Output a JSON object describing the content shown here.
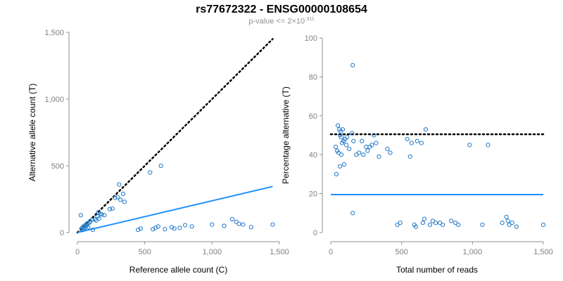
{
  "header": {
    "title": "rs77672322 - ENSG00000108654",
    "subtitle_prefix": "p-value <= 2×10",
    "subtitle_exponent": "-311"
  },
  "colors": {
    "points": "#1f78c8",
    "fit_line": "#1e90ff",
    "reference_line": "#000000",
    "axis": "#909090"
  },
  "chart_data": [
    {
      "type": "scatter",
      "xlabel": "Reference allele count (C)",
      "ylabel": "Alternative allele count (T)",
      "xlim": [
        0,
        1500
      ],
      "ylim": [
        0,
        1500
      ],
      "x_ticks": [
        0,
        500,
        1000,
        1500
      ],
      "x_tick_labels": [
        "0",
        "500",
        "1,000",
        "1,500"
      ],
      "y_ticks": [
        0,
        500,
        1000,
        1500
      ],
      "y_tick_labels": [
        "0",
        "500",
        "1,000",
        "1,500"
      ],
      "grid": false,
      "lines": [
        {
          "style": "dotted",
          "color": "black",
          "x": [
            0,
            1450
          ],
          "y": [
            0,
            1450
          ]
        },
        {
          "style": "solid",
          "color": "blue",
          "x": [
            0,
            1450
          ],
          "y": [
            0,
            345
          ]
        }
      ],
      "points": [
        {
          "x": 25,
          "y": 130
        },
        {
          "x": 30,
          "y": 30
        },
        {
          "x": 35,
          "y": 20
        },
        {
          "x": 40,
          "y": 40
        },
        {
          "x": 45,
          "y": 25
        },
        {
          "x": 50,
          "y": 50
        },
        {
          "x": 55,
          "y": 35
        },
        {
          "x": 60,
          "y": 45
        },
        {
          "x": 65,
          "y": 60
        },
        {
          "x": 70,
          "y": 55
        },
        {
          "x": 75,
          "y": 70
        },
        {
          "x": 80,
          "y": 40
        },
        {
          "x": 90,
          "y": 75
        },
        {
          "x": 95,
          "y": 85
        },
        {
          "x": 110,
          "y": 95
        },
        {
          "x": 115,
          "y": 20
        },
        {
          "x": 130,
          "y": 100
        },
        {
          "x": 140,
          "y": 90
        },
        {
          "x": 150,
          "y": 120
        },
        {
          "x": 155,
          "y": 150
        },
        {
          "x": 160,
          "y": 105
        },
        {
          "x": 170,
          "y": 140
        },
        {
          "x": 180,
          "y": 135
        },
        {
          "x": 200,
          "y": 130
        },
        {
          "x": 240,
          "y": 175
        },
        {
          "x": 260,
          "y": 180
        },
        {
          "x": 280,
          "y": 260
        },
        {
          "x": 300,
          "y": 265
        },
        {
          "x": 310,
          "y": 360
        },
        {
          "x": 320,
          "y": 245
        },
        {
          "x": 340,
          "y": 290
        },
        {
          "x": 350,
          "y": 230
        },
        {
          "x": 540,
          "y": 450
        },
        {
          "x": 620,
          "y": 500
        },
        {
          "x": 450,
          "y": 20
        },
        {
          "x": 470,
          "y": 30
        },
        {
          "x": 560,
          "y": 25
        },
        {
          "x": 580,
          "y": 35
        },
        {
          "x": 600,
          "y": 45
        },
        {
          "x": 650,
          "y": 25
        },
        {
          "x": 700,
          "y": 40
        },
        {
          "x": 720,
          "y": 30
        },
        {
          "x": 760,
          "y": 35
        },
        {
          "x": 800,
          "y": 55
        },
        {
          "x": 850,
          "y": 45
        },
        {
          "x": 1000,
          "y": 60
        },
        {
          "x": 1090,
          "y": 50
        },
        {
          "x": 1150,
          "y": 100
        },
        {
          "x": 1180,
          "y": 80
        },
        {
          "x": 1200,
          "y": 65
        },
        {
          "x": 1230,
          "y": 60
        },
        {
          "x": 1290,
          "y": 40
        },
        {
          "x": 1450,
          "y": 60
        }
      ]
    },
    {
      "type": "scatter",
      "xlabel": "Total number of reads",
      "ylabel": "Percentage alternative (T)",
      "xlim": [
        0,
        1500
      ],
      "ylim": [
        0,
        100
      ],
      "x_ticks": [
        0,
        500,
        1000,
        1500
      ],
      "x_tick_labels": [
        "0",
        "500",
        "1,000",
        "1,500"
      ],
      "y_ticks": [
        0,
        20,
        40,
        60,
        80,
        100
      ],
      "y_tick_labels": [
        "0",
        "20",
        "40",
        "60",
        "80",
        "100"
      ],
      "grid": false,
      "lines": [
        {
          "style": "dotted",
          "color": "black",
          "x": [
            0,
            1500
          ],
          "y": [
            50.5,
            50.5
          ]
        },
        {
          "style": "solid",
          "color": "blue",
          "x": [
            0,
            1500
          ],
          "y": [
            19.5,
            19.5
          ]
        }
      ],
      "points": [
        {
          "x": 155,
          "y": 86
        },
        {
          "x": 50,
          "y": 55
        },
        {
          "x": 60,
          "y": 53
        },
        {
          "x": 65,
          "y": 50
        },
        {
          "x": 70,
          "y": 52
        },
        {
          "x": 75,
          "y": 49
        },
        {
          "x": 80,
          "y": 46
        },
        {
          "x": 85,
          "y": 53
        },
        {
          "x": 90,
          "y": 47
        },
        {
          "x": 100,
          "y": 48
        },
        {
          "x": 110,
          "y": 45
        },
        {
          "x": 115,
          "y": 49
        },
        {
          "x": 130,
          "y": 43
        },
        {
          "x": 35,
          "y": 44
        },
        {
          "x": 45,
          "y": 42
        },
        {
          "x": 55,
          "y": 41
        },
        {
          "x": 75,
          "y": 40
        },
        {
          "x": 40,
          "y": 30
        },
        {
          "x": 65,
          "y": 34
        },
        {
          "x": 95,
          "y": 35
        },
        {
          "x": 150,
          "y": 51
        },
        {
          "x": 160,
          "y": 47
        },
        {
          "x": 180,
          "y": 40
        },
        {
          "x": 200,
          "y": 41
        },
        {
          "x": 220,
          "y": 47
        },
        {
          "x": 230,
          "y": 40
        },
        {
          "x": 250,
          "y": 44
        },
        {
          "x": 260,
          "y": 42
        },
        {
          "x": 275,
          "y": 44
        },
        {
          "x": 290,
          "y": 45
        },
        {
          "x": 305,
          "y": 50
        },
        {
          "x": 320,
          "y": 46
        },
        {
          "x": 340,
          "y": 39
        },
        {
          "x": 400,
          "y": 43
        },
        {
          "x": 420,
          "y": 41
        },
        {
          "x": 540,
          "y": 48
        },
        {
          "x": 560,
          "y": 39
        },
        {
          "x": 570,
          "y": 46
        },
        {
          "x": 610,
          "y": 47
        },
        {
          "x": 640,
          "y": 46
        },
        {
          "x": 670,
          "y": 53
        },
        {
          "x": 980,
          "y": 45
        },
        {
          "x": 1110,
          "y": 45
        },
        {
          "x": 155,
          "y": 10
        },
        {
          "x": 470,
          "y": 4
        },
        {
          "x": 490,
          "y": 5
        },
        {
          "x": 590,
          "y": 4
        },
        {
          "x": 600,
          "y": 3
        },
        {
          "x": 650,
          "y": 5
        },
        {
          "x": 660,
          "y": 7
        },
        {
          "x": 700,
          "y": 4
        },
        {
          "x": 720,
          "y": 6
        },
        {
          "x": 740,
          "y": 5
        },
        {
          "x": 770,
          "y": 5
        },
        {
          "x": 790,
          "y": 4
        },
        {
          "x": 850,
          "y": 6
        },
        {
          "x": 880,
          "y": 5
        },
        {
          "x": 900,
          "y": 4
        },
        {
          "x": 1070,
          "y": 4
        },
        {
          "x": 1210,
          "y": 5
        },
        {
          "x": 1240,
          "y": 8
        },
        {
          "x": 1250,
          "y": 6
        },
        {
          "x": 1260,
          "y": 4
        },
        {
          "x": 1280,
          "y": 5
        },
        {
          "x": 1310,
          "y": 3
        },
        {
          "x": 1500,
          "y": 4
        }
      ]
    }
  ]
}
